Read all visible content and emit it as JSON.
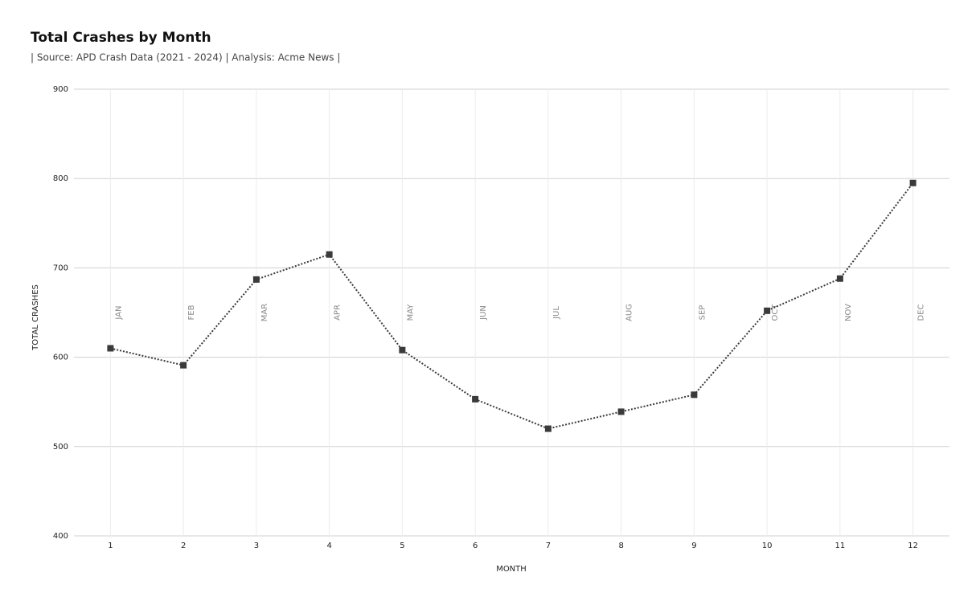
{
  "chart_data": {
    "type": "line",
    "title": "Total Crashes by Month",
    "subtitle": "| Source: APD Crash Data (2021 - 2024) | Analysis: Acme News |",
    "x_label": "MONTH",
    "y_label": "TOTAL CRASHES",
    "categories": [
      "1",
      "2",
      "3",
      "4",
      "5",
      "6",
      "7",
      "8",
      "9",
      "10",
      "11",
      "12"
    ],
    "annotations": [
      "JAN",
      "FEB",
      "MAR",
      "APR",
      "MAY",
      "JUN",
      "JUL",
      "AUG",
      "SEP",
      "OCT",
      "NOV",
      "DEC"
    ],
    "series": [
      {
        "name": "Total Crashes",
        "color": "#3a3a3a",
        "values": [
          610,
          591,
          687,
          715,
          608,
          553,
          520,
          539,
          558,
          652,
          688,
          795
        ]
      }
    ],
    "ylim": [
      400,
      900
    ],
    "yticks": [
      400,
      500,
      600,
      700,
      800,
      900
    ],
    "grid": true
  }
}
